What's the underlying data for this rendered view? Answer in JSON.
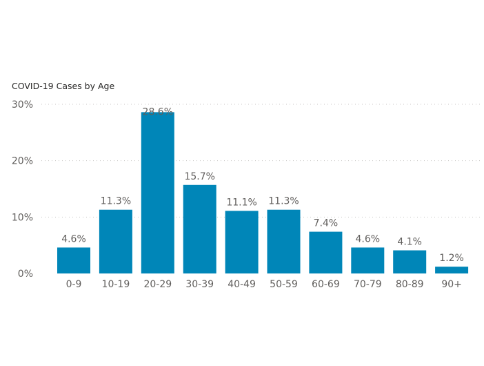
{
  "chart_data": {
    "type": "bar",
    "title": "COVID-19 Cases by Age",
    "categories": [
      "0-9",
      "10-19",
      "20-29",
      "30-39",
      "40-49",
      "50-59",
      "60-69",
      "70-79",
      "80-89",
      "90+"
    ],
    "values": [
      4.6,
      11.3,
      28.6,
      15.7,
      11.1,
      11.3,
      7.4,
      4.6,
      4.1,
      1.2
    ],
    "data_labels": [
      "4.6%",
      "11.3%",
      "28.6%",
      "15.7%",
      "11.1%",
      "11.3%",
      "7.4%",
      "4.6%",
      "4.1%",
      "1.2%"
    ],
    "ylim": [
      0,
      30
    ],
    "yticks": [
      0,
      10,
      20,
      30
    ],
    "ytick_labels": [
      "0%",
      "10%",
      "20%",
      "30%"
    ],
    "xlabel": "",
    "ylabel": "",
    "grid": true,
    "legend": "none",
    "colors": {
      "bar": "#0086b8",
      "grid": "#c8c6c4",
      "text": "#605e5c",
      "title": "#252423"
    }
  }
}
